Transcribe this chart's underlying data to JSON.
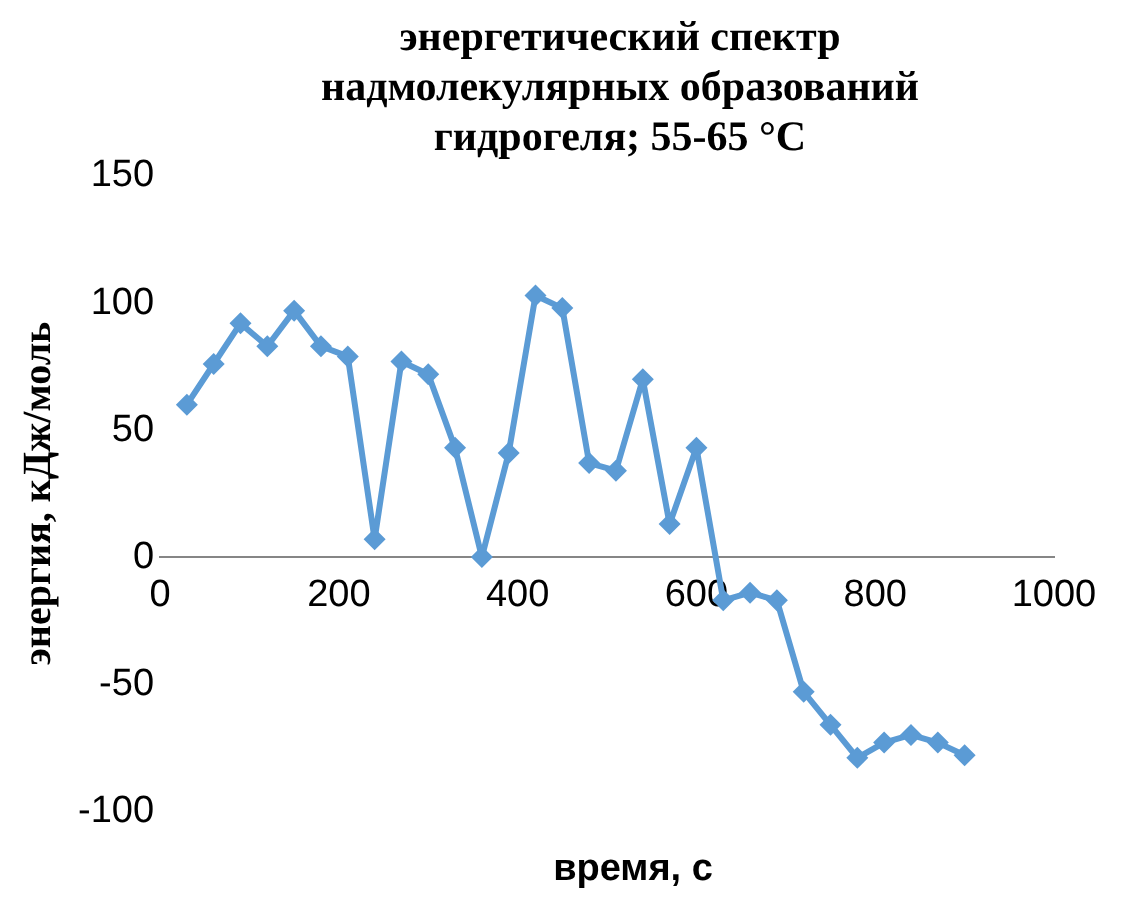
{
  "chart_data": {
    "type": "line",
    "title": "энергетический спектр надмолекулярных образований гидрогеля; 55-65 °C",
    "xlabel": "время, с",
    "ylabel": "энергия, кДж/моль",
    "x": [
      30,
      60,
      90,
      120,
      150,
      180,
      210,
      240,
      270,
      300,
      330,
      360,
      390,
      420,
      450,
      480,
      510,
      540,
      570,
      600,
      630,
      660,
      690,
      720,
      750,
      780,
      810,
      840,
      870,
      900
    ],
    "series": [
      {
        "color": "#5b9bd5",
        "values": [
          60,
          76,
          92,
          83,
          97,
          83,
          79,
          7,
          77,
          72,
          43,
          0,
          41,
          103,
          98,
          37,
          34,
          70,
          13,
          43,
          -17,
          -14,
          -17,
          -53,
          -66,
          -79,
          -73,
          -70,
          -73,
          -78
        ]
      }
    ],
    "xlim": [
      0,
      1000
    ],
    "xticks": [
      0,
      200,
      400,
      600,
      800,
      1000
    ],
    "ylim": [
      -100,
      150
    ],
    "yticks": [
      -100,
      -50,
      0,
      50,
      100,
      150
    ],
    "grid": false,
    "legend": false,
    "marker": "diamond",
    "line_style": "solid"
  }
}
